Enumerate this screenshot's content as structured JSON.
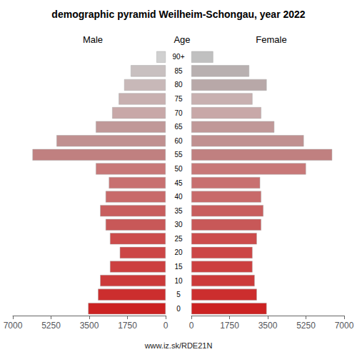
{
  "chart_data": {
    "type": "bar",
    "orientation": "horizontal",
    "title": "demographic pyramid Weilheim-Schongau, year 2022",
    "ylabel": "Age",
    "annotations": [
      "www.iz.sk/RDE21N"
    ],
    "categories": [
      "0",
      "5",
      "10",
      "15",
      "20",
      "25",
      "30",
      "35",
      "40",
      "45",
      "50",
      "55",
      "60",
      "65",
      "70",
      "75",
      "80",
      "85",
      "90+"
    ],
    "series": [
      {
        "name": "Male",
        "values": [
          3550,
          3100,
          3000,
          2550,
          2100,
          2550,
          2750,
          3000,
          2750,
          2600,
          3200,
          6100,
          5000,
          3200,
          2450,
          2150,
          1900,
          1600,
          420
        ],
        "colors": [
          "#cc2222",
          "#cc2e2e",
          "#cc3a3a",
          "#cc4040",
          "#cc4646",
          "#cc4c4c",
          "#c85858",
          "#c85e5e",
          "#c86a6a",
          "#c87070",
          "#c87878",
          "#c08080",
          "#c09090",
          "#c09898",
          "#c8a8a8",
          "#c8b0b0",
          "#c8b8b8",
          "#c8c0c0",
          "#d0d0d0"
        ]
      },
      {
        "name": "Female",
        "values": [
          3450,
          3000,
          2900,
          2800,
          2800,
          3000,
          3200,
          3300,
          3200,
          3150,
          5250,
          6450,
          5150,
          3800,
          3200,
          2800,
          3450,
          2650,
          1000
        ],
        "colors": [
          "#cc2222",
          "#cc2e2e",
          "#cc3a3a",
          "#cc4040",
          "#cc4646",
          "#cc4c4c",
          "#c85858",
          "#c85e5e",
          "#c86a6a",
          "#c87070",
          "#c87878",
          "#c08080",
          "#c09090",
          "#c09898",
          "#c8a8a8",
          "#c8b0b0",
          "#b8a8a8",
          "#b8b0b0",
          "#c0c0c0"
        ]
      }
    ],
    "xlim": [
      0,
      7000
    ],
    "xticks": [
      0,
      1750,
      3500,
      5250,
      7000
    ],
    "grid": false
  }
}
